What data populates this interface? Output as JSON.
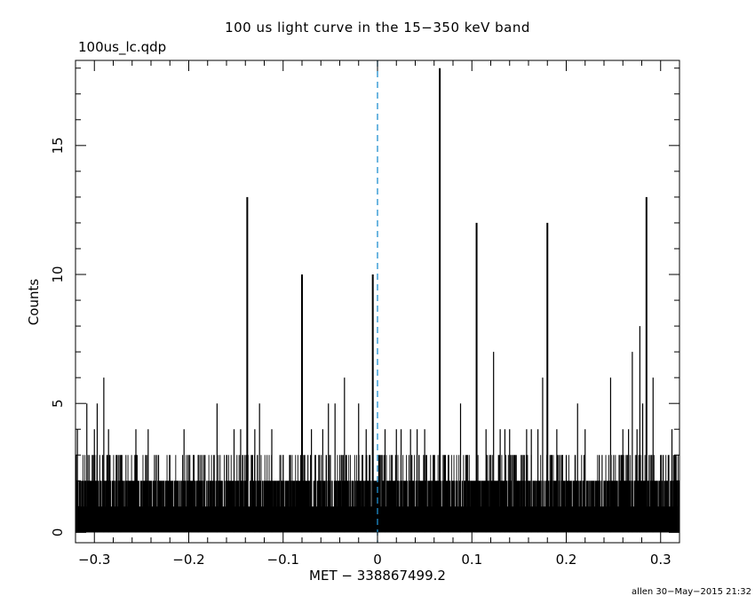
{
  "plot": {
    "title": "100 us light curve in the 15−350 keV band",
    "file_label": "100us_lc.qdp",
    "footer": "allen 30−May−2015 21:32"
  },
  "chart_data": {
    "type": "bar",
    "title": "100 us light curve in the 15−350 keV band",
    "xlabel": "MET − 338867499.2",
    "ylabel": "Counts",
    "xlim": [
      -0.32,
      0.32
    ],
    "ylim": [
      -0.4,
      18.3
    ],
    "bin_width": 0.0001,
    "xticks": [
      {
        "value": -0.3,
        "label": "−0.3"
      },
      {
        "value": -0.2,
        "label": "−0.2"
      },
      {
        "value": -0.1,
        "label": "−0.1"
      },
      {
        "value": 0,
        "label": "0"
      },
      {
        "value": 0.1,
        "label": "0.1"
      },
      {
        "value": 0.2,
        "label": "0.2"
      },
      {
        "value": 0.3,
        "label": "0.3"
      }
    ],
    "yticks": [
      {
        "value": 0,
        "label": "0"
      },
      {
        "value": 5,
        "label": "5"
      },
      {
        "value": 10,
        "label": "10"
      },
      {
        "value": 15,
        "label": "15"
      }
    ],
    "reference_line": {
      "x": 0,
      "color": "#1f8fcf",
      "style": "dashed"
    },
    "grid": false,
    "peaks": [
      {
        "x": -0.318,
        "y": 4
      },
      {
        "x": -0.308,
        "y": 5
      },
      {
        "x": -0.3,
        "y": 4
      },
      {
        "x": -0.297,
        "y": 5
      },
      {
        "x": -0.29,
        "y": 6
      },
      {
        "x": -0.285,
        "y": 4
      },
      {
        "x": -0.272,
        "y": 3
      },
      {
        "x": -0.256,
        "y": 4
      },
      {
        "x": -0.243,
        "y": 4
      },
      {
        "x": -0.232,
        "y": 3
      },
      {
        "x": -0.22,
        "y": 3
      },
      {
        "x": -0.205,
        "y": 4
      },
      {
        "x": -0.19,
        "y": 3
      },
      {
        "x": -0.17,
        "y": 5
      },
      {
        "x": -0.16,
        "y": 3
      },
      {
        "x": -0.152,
        "y": 4
      },
      {
        "x": -0.145,
        "y": 4
      },
      {
        "x": -0.138,
        "y": 13
      },
      {
        "x": -0.13,
        "y": 4
      },
      {
        "x": -0.125,
        "y": 5
      },
      {
        "x": -0.112,
        "y": 4
      },
      {
        "x": -0.1,
        "y": 3
      },
      {
        "x": -0.08,
        "y": 10
      },
      {
        "x": -0.07,
        "y": 4
      },
      {
        "x": -0.058,
        "y": 4
      },
      {
        "x": -0.052,
        "y": 5
      },
      {
        "x": -0.045,
        "y": 5
      },
      {
        "x": -0.035,
        "y": 6
      },
      {
        "x": -0.02,
        "y": 5
      },
      {
        "x": -0.012,
        "y": 4
      },
      {
        "x": -0.005,
        "y": 10
      },
      {
        "x": 0.002,
        "y": 3
      },
      {
        "x": 0.008,
        "y": 4
      },
      {
        "x": 0.02,
        "y": 4
      },
      {
        "x": 0.025,
        "y": 4
      },
      {
        "x": 0.035,
        "y": 4
      },
      {
        "x": 0.042,
        "y": 4
      },
      {
        "x": 0.05,
        "y": 4
      },
      {
        "x": 0.066,
        "y": 18
      },
      {
        "x": 0.075,
        "y": 3
      },
      {
        "x": 0.088,
        "y": 5
      },
      {
        "x": 0.095,
        "y": 3
      },
      {
        "x": 0.105,
        "y": 12
      },
      {
        "x": 0.115,
        "y": 4
      },
      {
        "x": 0.12,
        "y": 3
      },
      {
        "x": 0.123,
        "y": 7
      },
      {
        "x": 0.13,
        "y": 4
      },
      {
        "x": 0.135,
        "y": 4
      },
      {
        "x": 0.14,
        "y": 4
      },
      {
        "x": 0.147,
        "y": 3
      },
      {
        "x": 0.158,
        "y": 4
      },
      {
        "x": 0.163,
        "y": 4
      },
      {
        "x": 0.17,
        "y": 4
      },
      {
        "x": 0.175,
        "y": 6
      },
      {
        "x": 0.18,
        "y": 12
      },
      {
        "x": 0.19,
        "y": 4
      },
      {
        "x": 0.2,
        "y": 3
      },
      {
        "x": 0.212,
        "y": 5
      },
      {
        "x": 0.22,
        "y": 4
      },
      {
        "x": 0.235,
        "y": 3
      },
      {
        "x": 0.247,
        "y": 6
      },
      {
        "x": 0.26,
        "y": 4
      },
      {
        "x": 0.266,
        "y": 4
      },
      {
        "x": 0.27,
        "y": 7
      },
      {
        "x": 0.275,
        "y": 4
      },
      {
        "x": 0.278,
        "y": 8
      },
      {
        "x": 0.281,
        "y": 5
      },
      {
        "x": 0.285,
        "y": 13
      },
      {
        "x": 0.292,
        "y": 6
      },
      {
        "x": 0.3,
        "y": 3
      },
      {
        "x": 0.312,
        "y": 4
      },
      {
        "x": 0.316,
        "y": 3
      }
    ],
    "baseline_level_counts": 2,
    "background_occupancy": [
      {
        "counts": 1,
        "fraction": 0.55
      },
      {
        "counts": 2,
        "fraction": 0.2
      },
      {
        "counts": 3,
        "fraction": 0.05
      }
    ]
  }
}
